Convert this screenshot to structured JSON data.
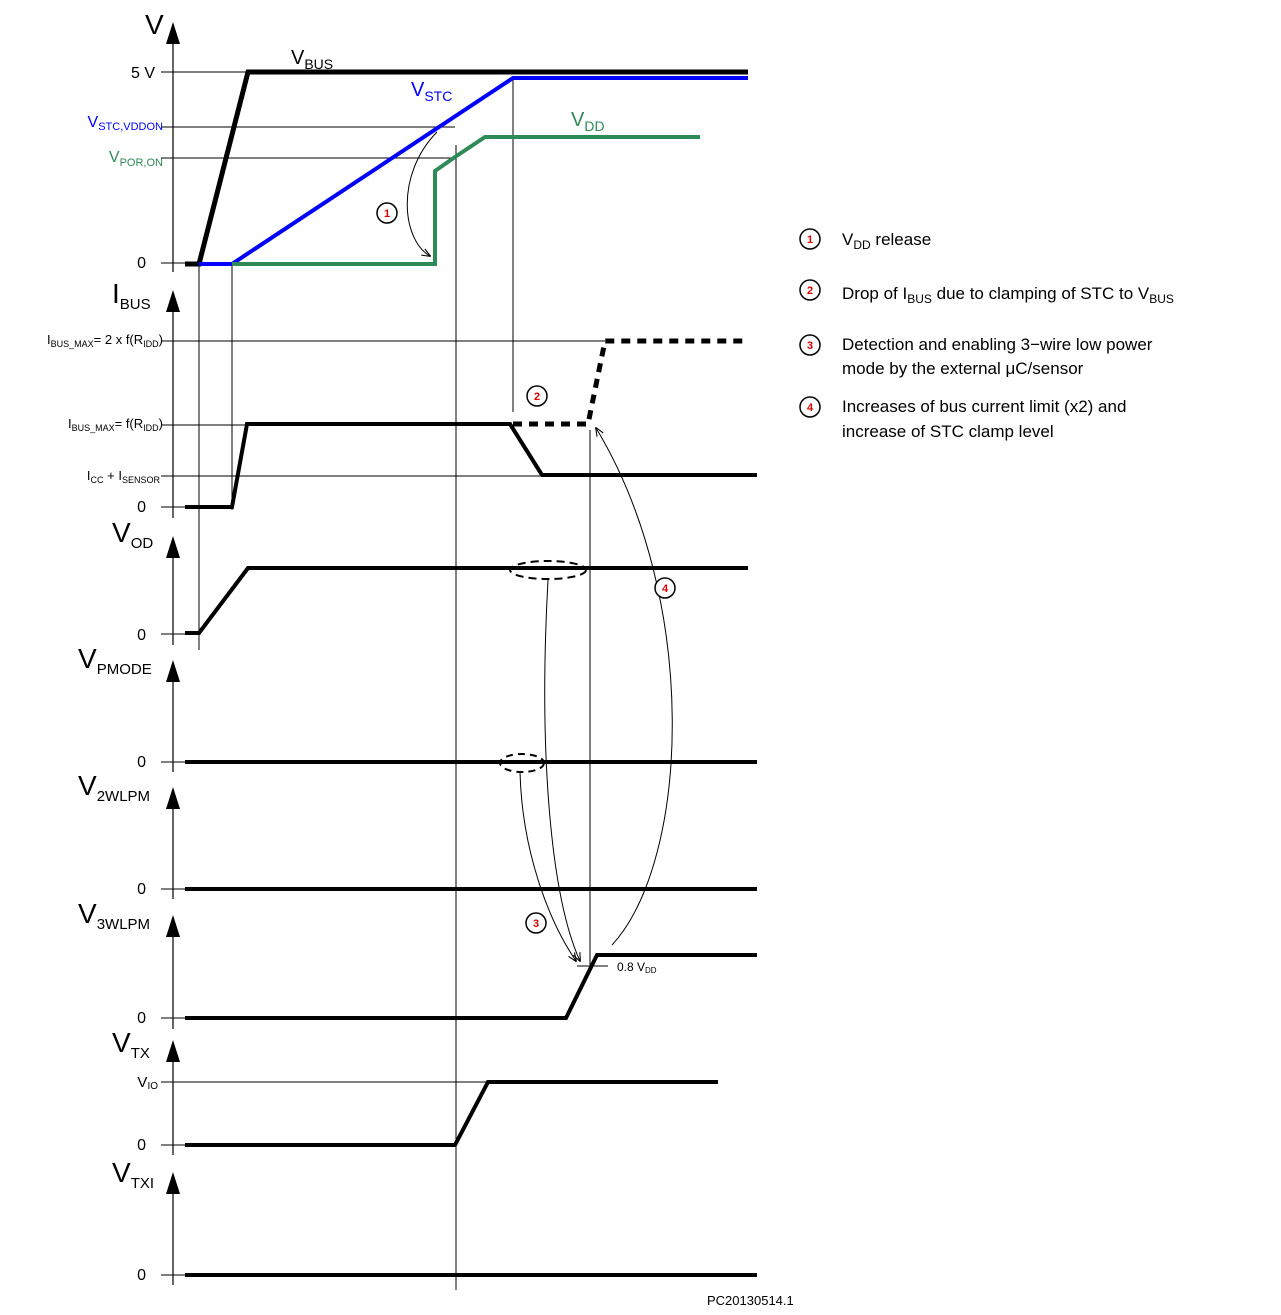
{
  "colors": {
    "vbus": "#000000",
    "vstc": "#0000ff",
    "vdd": "#2e8b57",
    "marker": "#e00000"
  },
  "axes": {
    "v": "V",
    "ibus": {
      "main": "I",
      "sub": "BUS"
    },
    "vod": {
      "main": "V",
      "sub": "OD"
    },
    "vpmode": {
      "main": "V",
      "sub": "PMODE"
    },
    "v2wlpm": {
      "main": "V",
      "sub": "2WLPM"
    },
    "v3wlpm": {
      "main": "V",
      "sub": "3WLPM"
    },
    "vtx": {
      "main": "V",
      "sub": "TX"
    },
    "vtxi": {
      "main": "V",
      "sub": "TXI"
    }
  },
  "ticks": {
    "five_v": "5 V",
    "zero": "0",
    "vstc_vddon": {
      "main": "V",
      "sub": "STC,VDDON"
    },
    "vpor_on": {
      "main": "V",
      "sub": "POR,ON"
    },
    "ibus_max2": {
      "p1": "I",
      "s1": "BUS_MAX",
      "p2": "= 2 x f(R",
      "s2": "IDD",
      "p3": ")"
    },
    "ibus_max": {
      "p1": "I",
      "s1": "BUS_MAX",
      "p2": "= f(R",
      "s2": "IDD",
      "p3": ")"
    },
    "icc_isensor": {
      "p1": "I",
      "s1": "CC",
      "p2": " + I",
      "s2": "SENSOR"
    },
    "vio": {
      "main": "V",
      "sub": "IO"
    }
  },
  "signals": {
    "vbus": {
      "main": "V",
      "sub": "BUS"
    },
    "vstc": {
      "main": "V",
      "sub": "STC"
    },
    "vdd": {
      "main": "V",
      "sub": "DD"
    }
  },
  "annotations": {
    "threshold": {
      "prefix": "0.8 V",
      "sub": "DD"
    },
    "markers": [
      "1",
      "2",
      "3",
      "4"
    ]
  },
  "legend": {
    "item1": {
      "num": "1",
      "p1": "V",
      "s1": "DD",
      "p2": " release"
    },
    "item2": {
      "num": "2",
      "p1": "Drop of I",
      "s1": "BUS",
      "p2": " due to clamping of STC to V",
      "s2": "BUS"
    },
    "item3": {
      "num": "3",
      "line1": "Detection and enabling 3−wire low power",
      "line2": "mode by the external μC/sensor"
    },
    "item4": {
      "num": "4",
      "line1": "Increases of bus current limit (x2) and",
      "line2": "increase of STC clamp level"
    }
  },
  "footer": {
    "code": "PC20130514.1"
  }
}
